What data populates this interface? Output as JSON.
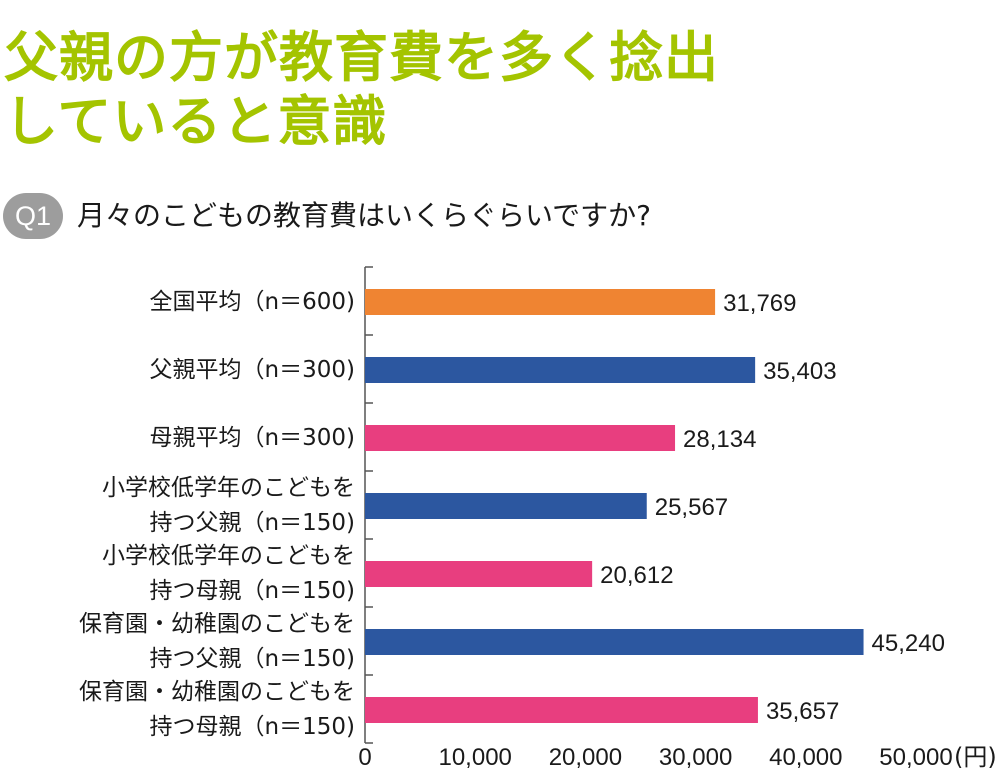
{
  "headline": {
    "line1": "父親の方が教育費を多く捻出",
    "line2": "していると意識"
  },
  "question": {
    "badge": "Q1",
    "text": "月々のこどもの教育費はいくらぐらいですか?"
  },
  "colors": {
    "headline": "#a4c400",
    "badge": "#9d9d9d",
    "overall": "#ef8432",
    "father": "#2c57a0",
    "mother": "#e83e7f"
  },
  "chart_data": {
    "type": "bar",
    "orientation": "horizontal",
    "categories": [
      [
        "全国平均（n＝600)"
      ],
      [
        "父親平均（n＝300)"
      ],
      [
        "母親平均（n＝300)"
      ],
      [
        "小学校低学年のこどもを",
        "持つ父親（n＝150)"
      ],
      [
        "小学校低学年のこどもを",
        "持つ母親（n＝150)"
      ],
      [
        "保育園・幼稚園のこどもを",
        "持つ父親（n＝150)"
      ],
      [
        "保育園・幼稚園のこどもを",
        "持つ母親（n＝150)"
      ]
    ],
    "values": [
      31769,
      35403,
      28134,
      25567,
      20612,
      45240,
      35657
    ],
    "value_labels": [
      "31,769",
      "35,403",
      "28,134",
      "25,567",
      "20,612",
      "45,240",
      "35,657"
    ],
    "bar_colors": [
      "#ef8432",
      "#2c57a0",
      "#e83e7f",
      "#2c57a0",
      "#e83e7f",
      "#2c57a0",
      "#e83e7f"
    ],
    "xlim": [
      0,
      50000
    ],
    "xticks": [
      0,
      10000,
      20000,
      30000,
      40000,
      50000
    ],
    "xtick_labels": [
      "0",
      "10,000",
      "20,000",
      "30,000",
      "40,000",
      "50,000"
    ],
    "unit_label": "(円)",
    "grid": false
  }
}
